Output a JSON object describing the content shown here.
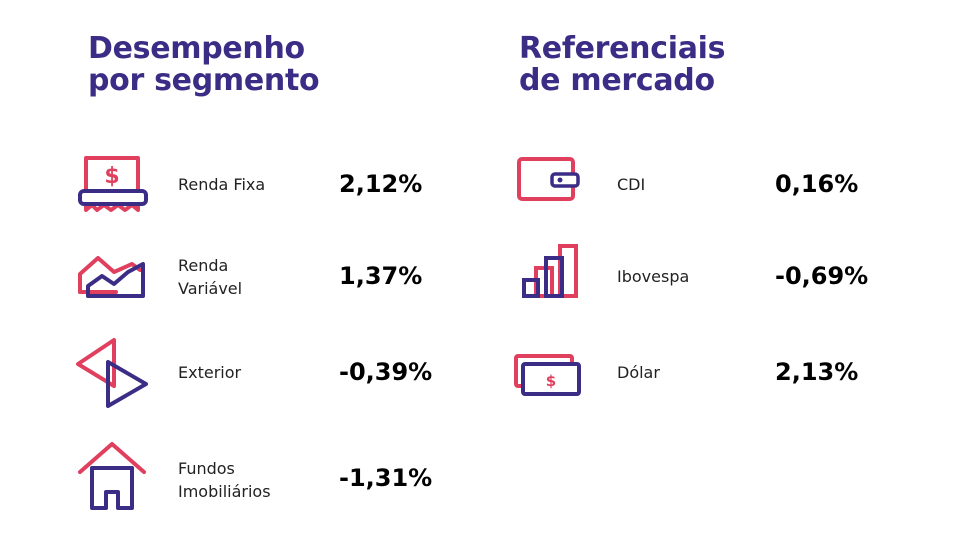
{
  "left_heading": {
    "line1": "Desempenho",
    "line2": "por segmento"
  },
  "right_heading": {
    "line1": "Referenciais",
    "line2": "de mercado"
  },
  "segments": [
    {
      "label_line1": "Renda Fixa",
      "label_line2": "",
      "value": "2,12%",
      "icon": "receipt-dollar-icon"
    },
    {
      "label_line1": "Renda",
      "label_line2": "Variável",
      "value": "1,37%",
      "icon": "variable-income-chart-icon"
    },
    {
      "label_line1": "Exterior",
      "label_line2": "",
      "value": "-0,39%",
      "icon": "exchange-arrows-icon"
    },
    {
      "label_line1": "Fundos",
      "label_line2": "Imobiliários",
      "value": "-1,31%",
      "icon": "house-icon"
    }
  ],
  "benchmarks": [
    {
      "label": "CDI",
      "value": "0,16%",
      "icon": "wallet-icon"
    },
    {
      "label": "Ibovespa",
      "value": "-0,69%",
      "icon": "bar-chart-icon"
    },
    {
      "label": "Dólar",
      "value": "2,13%",
      "icon": "banknote-icon"
    }
  ],
  "icon_symbols": {
    "currency": "$"
  },
  "colors": {
    "heading": "#3b2d86",
    "accent_red": "#e0405e",
    "accent_purple": "#3b2d86"
  }
}
